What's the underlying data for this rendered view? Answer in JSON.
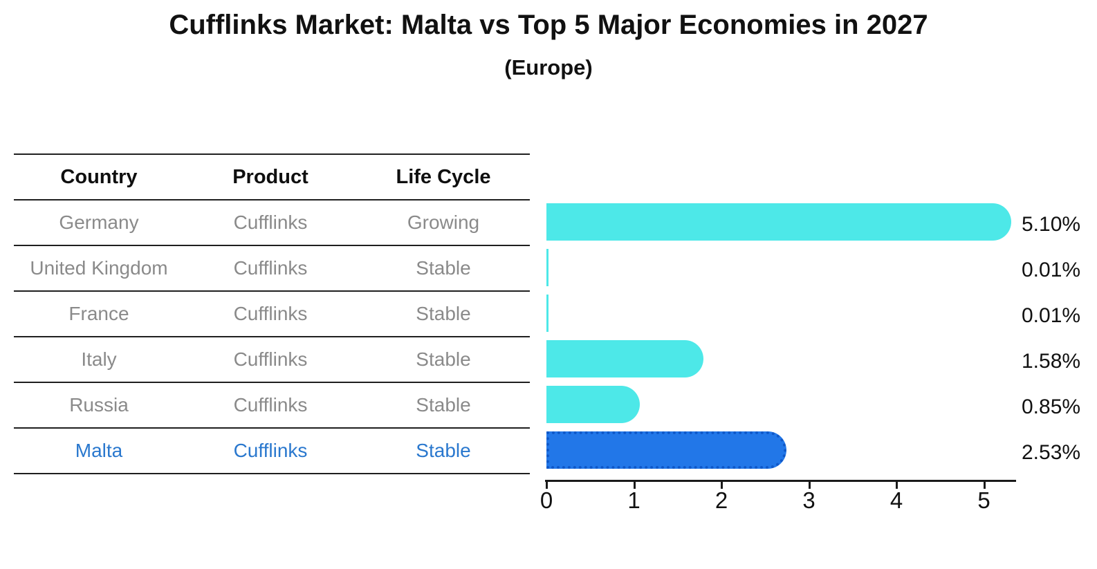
{
  "chart_data": {
    "type": "bar",
    "orientation": "horizontal",
    "title": "Cufflinks Market: Malta vs Top 5 Major Economies in 2027",
    "subtitle": "(Europe)",
    "categories": [
      "Germany",
      "United Kingdom",
      "France",
      "Italy",
      "Russia",
      "Malta"
    ],
    "values": [
      5.1,
      0.01,
      0.01,
      1.58,
      0.85,
      2.53
    ],
    "value_labels": [
      "5.10%",
      "0.01%",
      "0.01%",
      "1.58%",
      "0.85%",
      "2.53%"
    ],
    "unit": "percent",
    "highlight_index": 5,
    "x_ticks": [
      "0",
      "1",
      "2",
      "3",
      "4",
      "5"
    ],
    "xlim": [
      0,
      5.4
    ],
    "grid": false,
    "legend": "none"
  },
  "table": {
    "headers": [
      "Country",
      "Product",
      "Life Cycle"
    ],
    "rows": [
      [
        "Germany",
        "Cufflinks",
        "Growing"
      ],
      [
        "United Kingdom",
        "Cufflinks",
        "Stable"
      ],
      [
        "France",
        "Cufflinks",
        "Stable"
      ],
      [
        "Italy",
        "Cufflinks",
        "Stable"
      ],
      [
        "Russia",
        "Cufflinks",
        "Stable"
      ],
      [
        "Malta",
        "Cufflinks",
        "Stable"
      ]
    ],
    "highlight_row": 5
  },
  "colors": {
    "bar": "#4de8e8",
    "highlight_bar": "#2277e8",
    "highlight_border": "#1059c9",
    "highlight_text": "#2a78ce",
    "cell_text": "#8a8a8a",
    "header_text": "#0f0f0f",
    "axis": "#1a1a1a"
  }
}
